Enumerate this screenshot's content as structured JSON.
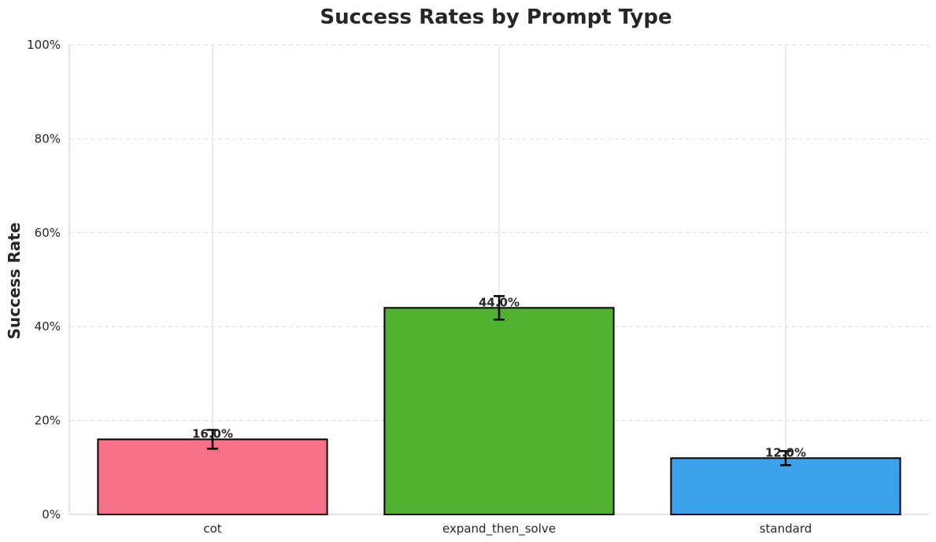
{
  "chart_data": {
    "type": "bar",
    "title": "Success Rates by Prompt Type",
    "xlabel": "",
    "ylabel": "Success Rate",
    "categories": [
      "cot",
      "expand_then_solve",
      "standard"
    ],
    "values": [
      16.0,
      44.0,
      12.0
    ],
    "error": [
      2.0,
      2.5,
      1.5
    ],
    "value_labels": [
      "16.0%",
      "44.0%",
      "12.0%"
    ],
    "colors": [
      "#f77189",
      "#50b131",
      "#3ba3ec"
    ],
    "ylim": [
      0,
      100
    ],
    "yticks": [
      0,
      20,
      40,
      60,
      80,
      100
    ],
    "ytick_labels": [
      "0%",
      "20%",
      "40%",
      "60%",
      "80%",
      "100%"
    ],
    "grid": true,
    "legend": "none"
  }
}
